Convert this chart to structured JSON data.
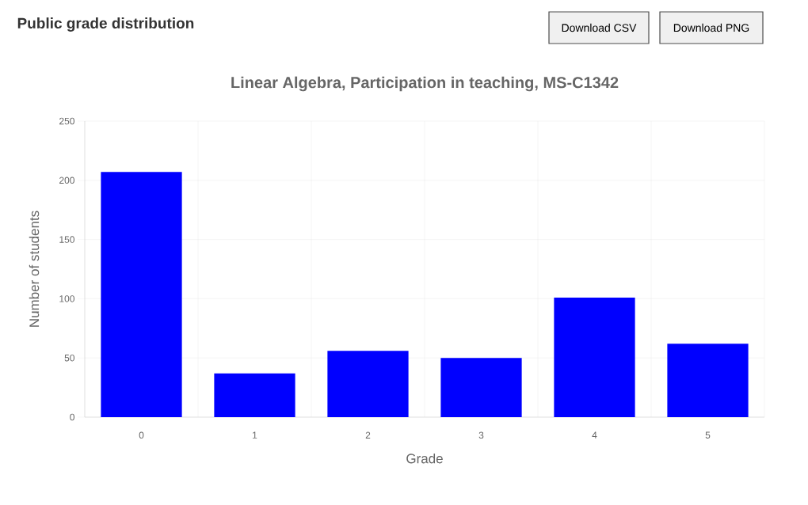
{
  "chart_data": {
    "type": "bar",
    "title": "Public grade distribution",
    "subtitle": "Linear Algebra, Participation in teaching, MS-C1342",
    "xlabel": "Grade",
    "ylabel": "Number of students",
    "categories": [
      "0",
      "1",
      "2",
      "3",
      "4",
      "5"
    ],
    "values": [
      207,
      37,
      56,
      50,
      101,
      62
    ],
    "color": "#0000ff",
    "ylim": [
      0,
      250
    ],
    "yticks": [
      0,
      50,
      100,
      150,
      200,
      250
    ],
    "grid": true,
    "annotations": [
      "Download CSV",
      "Download PNG"
    ]
  }
}
